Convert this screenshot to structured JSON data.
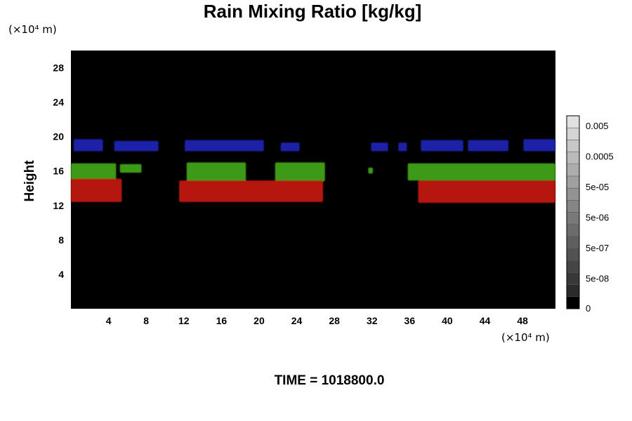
{
  "chart_data": {
    "type": "heatmap",
    "title": "Rain Mixing Ratio [kg/kg]",
    "ylabel": "Height",
    "xlabel": "",
    "x_unit": "(×10⁴ m)",
    "y_unit": "(×10⁴ m)",
    "xlim": [
      0,
      51.5
    ],
    "ylim": [
      0,
      30
    ],
    "x_ticks": [
      4,
      8,
      12,
      16,
      20,
      24,
      28,
      32,
      36,
      40,
      44,
      48
    ],
    "y_ticks": [
      4,
      8,
      12,
      16,
      20,
      24,
      28
    ],
    "grid": false,
    "background_color": "#000000",
    "colorbar": {
      "labels": [
        "0.005",
        "0.0005",
        "5e-05",
        "5e-06",
        "5e-07",
        "5e-08",
        "0"
      ],
      "levels": 16
    },
    "layers": [
      {
        "color": "#1a23a8",
        "segments": [
          {
            "x0": 0.3,
            "x1": 3.4,
            "top": 19.7,
            "bottom": 18.3
          },
          {
            "x0": 4.6,
            "x1": 9.3,
            "top": 19.5,
            "bottom": 18.3
          },
          {
            "x0": 12.1,
            "x1": 20.5,
            "top": 19.6,
            "bottom": 18.3
          },
          {
            "x0": 22.3,
            "x1": 24.3,
            "top": 19.3,
            "bottom": 18.3
          },
          {
            "x0": 31.9,
            "x1": 33.7,
            "top": 19.3,
            "bottom": 18.3
          },
          {
            "x0": 34.8,
            "x1": 35.7,
            "top": 19.3,
            "bottom": 18.3
          },
          {
            "x0": 37.2,
            "x1": 41.7,
            "top": 19.6,
            "bottom": 18.3
          },
          {
            "x0": 42.2,
            "x1": 46.5,
            "top": 19.6,
            "bottom": 18.3
          },
          {
            "x0": 48.1,
            "x1": 51.5,
            "top": 19.7,
            "bottom": 18.3
          }
        ]
      },
      {
        "color": "#3d9a12",
        "segments": [
          {
            "x0": 0.0,
            "x1": 4.8,
            "top": 16.9,
            "bottom": 15.0
          },
          {
            "x0": 5.2,
            "x1": 7.5,
            "top": 16.8,
            "bottom": 15.8
          },
          {
            "x0": 12.3,
            "x1": 18.6,
            "top": 17.0,
            "bottom": 14.8
          },
          {
            "x0": 21.7,
            "x1": 27.0,
            "top": 17.0,
            "bottom": 14.8
          },
          {
            "x0": 31.6,
            "x1": 32.1,
            "top": 16.4,
            "bottom": 15.7
          },
          {
            "x0": 35.8,
            "x1": 51.5,
            "top": 16.9,
            "bottom": 14.9
          }
        ]
      },
      {
        "color": "#b51310",
        "segments": [
          {
            "x0": 0.0,
            "x1": 5.4,
            "top": 15.1,
            "bottom": 12.4
          },
          {
            "x0": 11.5,
            "x1": 26.8,
            "top": 14.9,
            "bottom": 12.4
          },
          {
            "x0": 36.9,
            "x1": 51.5,
            "top": 14.9,
            "bottom": 12.3
          }
        ]
      }
    ]
  },
  "time_label": "TIME = 1018800.0"
}
